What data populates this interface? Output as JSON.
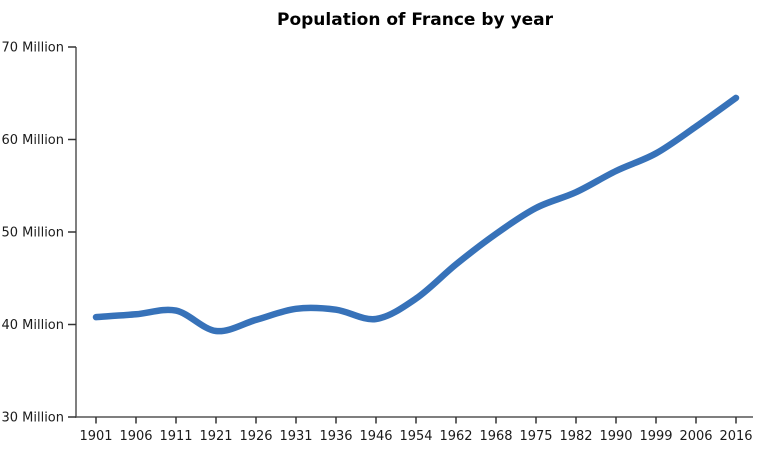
{
  "page": {
    "background_color": "#ffffff"
  },
  "chart_data": {
    "type": "line",
    "title": "Population of France by year",
    "categories": [
      "1901",
      "1906",
      "1911",
      "1921",
      "1926",
      "1931",
      "1936",
      "1946",
      "1954",
      "1962",
      "1968",
      "1975",
      "1982",
      "1990",
      "1999",
      "2006",
      "2016"
    ],
    "values": [
      40.8,
      41.1,
      41.5,
      39.3,
      40.5,
      41.7,
      41.6,
      40.6,
      42.8,
      46.5,
      49.8,
      52.6,
      54.3,
      56.6,
      58.5,
      61.4,
      64.5
    ],
    "unit": "Million",
    "xlabel": "",
    "ylabel": "",
    "ylim": [
      30,
      70
    ],
    "y_tick_interval": 10,
    "y_tick_labels": [
      "30 Million",
      "40 Million",
      "50 Million",
      "60 Million",
      "70 Million"
    ],
    "grid": false,
    "legend_position": "none",
    "smooth_line": true,
    "colors": {
      "line": "#3772B9",
      "axis": "#555555",
      "tick": "#333333",
      "tick_label": "#1b1b1b",
      "title": "#000000",
      "background": "#ffffff"
    }
  }
}
